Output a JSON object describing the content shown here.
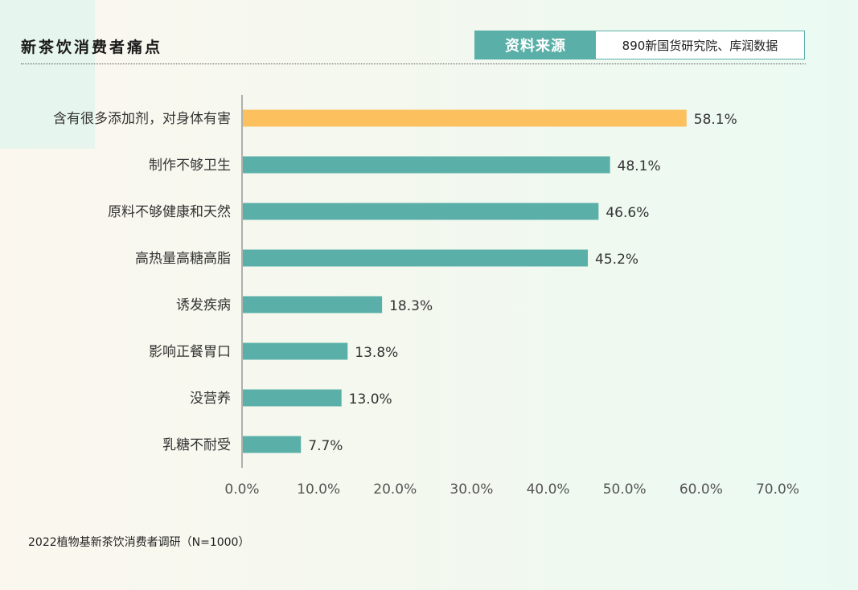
{
  "header": {
    "title": "新茶饮消费者痛点",
    "source_label": "资料来源",
    "source_value": "890新国货研究院、库润数据"
  },
  "footnote": "2022植物基新茶饮消费者调研（N=1000）",
  "colors": {
    "highlight": "#fcc05f",
    "bar": "#5ab0a8",
    "axis": "#999999"
  },
  "chart_data": {
    "type": "bar",
    "orientation": "horizontal",
    "categories": [
      "含有很多添加剂，对身体有害",
      "制作不够卫生",
      "原料不够健康和天然",
      "高热量高糖高脂",
      "诱发疾病",
      "影响正餐胃口",
      "没营养",
      "乳糖不耐受"
    ],
    "values": [
      58.1,
      48.1,
      46.6,
      45.2,
      18.3,
      13.8,
      13.0,
      7.7
    ],
    "value_labels": [
      "58.1%",
      "48.1%",
      "46.6%",
      "45.2%",
      "18.3%",
      "13.8%",
      "13.0%",
      "7.7%"
    ],
    "highlight_index": 0,
    "xlim": [
      0,
      70
    ],
    "xticks": [
      "0.0%",
      "10.0%",
      "20.0%",
      "30.0%",
      "40.0%",
      "50.0%",
      "60.0%",
      "70.0%"
    ],
    "grid": false,
    "legend": "none"
  }
}
